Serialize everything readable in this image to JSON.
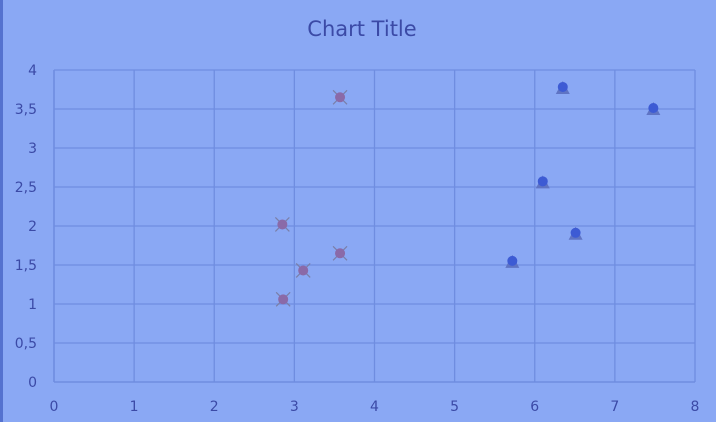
{
  "chart_data": {
    "type": "scatter",
    "title": "Chart Title",
    "xlim": [
      0,
      8
    ],
    "ylim": [
      0,
      4
    ],
    "x_ticks": [
      "0",
      "1",
      "2",
      "3",
      "4",
      "5",
      "6",
      "7",
      "8"
    ],
    "y_ticks": [
      "0",
      "0,5",
      "1",
      "1,5",
      "2",
      "2,5",
      "3",
      "3,5",
      "4"
    ],
    "grid": true,
    "legend": false,
    "series": [
      {
        "marker": "circle-x",
        "color": "#8a6aa8",
        "points": [
          [
            2.85,
            2.02
          ],
          [
            3.57,
            3.65
          ],
          [
            3.57,
            1.65
          ],
          [
            3.11,
            1.43
          ],
          [
            2.86,
            1.06
          ]
        ]
      },
      {
        "marker": "triangle-circle",
        "color": "#3d5bd4",
        "points": [
          [
            6.35,
            3.77
          ],
          [
            7.48,
            3.5
          ],
          [
            6.1,
            2.56
          ],
          [
            6.51,
            1.9
          ],
          [
            5.72,
            1.54
          ]
        ]
      }
    ]
  }
}
